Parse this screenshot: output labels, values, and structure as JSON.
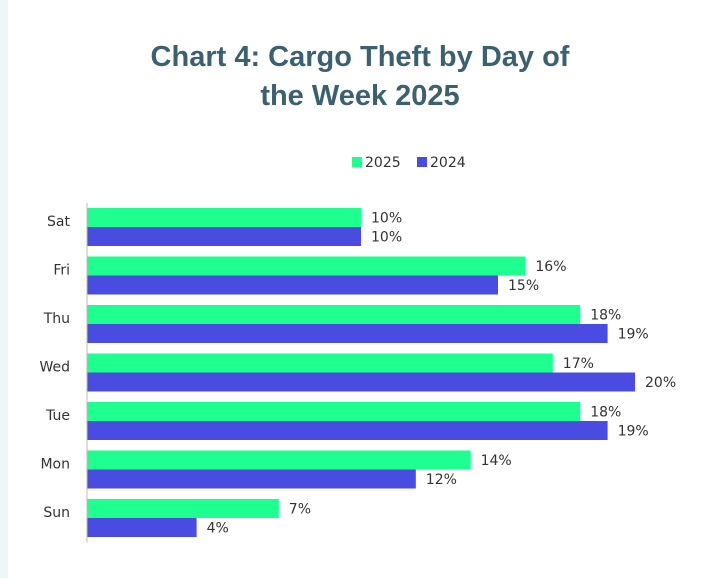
{
  "chart_data": {
    "type": "bar",
    "orientation": "horizontal",
    "title": "Chart 4: Cargo Theft by Day of the Week 2025",
    "categories": [
      "Sat",
      "Fri",
      "Thu",
      "Wed",
      "Tue",
      "Mon",
      "Sun"
    ],
    "series": [
      {
        "name": "2025",
        "color": "#1fff8f",
        "values": [
          10,
          16,
          18,
          17,
          18,
          14,
          7
        ],
        "value_labels": [
          "10%",
          "16%",
          "18%",
          "17%",
          "18%",
          "14%",
          "7%"
        ]
      },
      {
        "name": "2024",
        "color": "#4a4be1",
        "values": [
          10,
          15,
          19,
          20,
          19,
          12,
          4
        ],
        "value_labels": [
          "10%",
          "15%",
          "19%",
          "20%",
          "19%",
          "12%",
          "4%"
        ]
      }
    ],
    "legend": "top"
  }
}
